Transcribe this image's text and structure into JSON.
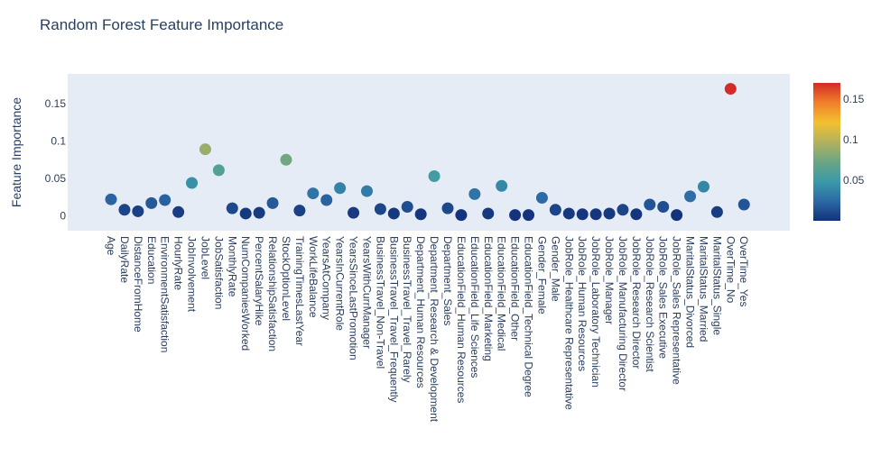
{
  "chart_data": {
    "type": "scatter",
    "title": "Random Forest Feature Importance",
    "xlabel": "",
    "ylabel": "Feature Importance",
    "ylim": [
      -0.02,
      0.19
    ],
    "y_ticks": [
      0,
      0.05,
      0.1,
      0.15
    ],
    "y_tick_labels": [
      "0",
      "0.05",
      "0.1",
      "0.15"
    ],
    "grid": false,
    "legend": "none",
    "colorbar": {
      "range": [
        0.0,
        0.17
      ],
      "ticks": [
        0.05,
        0.1,
        0.15
      ],
      "tick_labels": [
        "0.05",
        "0.1",
        "0.15"
      ],
      "colorscale": [
        "#13317a",
        "#2d6aa5",
        "#3a9aa8",
        "#6aa683",
        "#b4b15e",
        "#f2c12f",
        "#f07f2a",
        "#d32b25"
      ]
    },
    "categories": [
      "Age",
      "DailyRate",
      "DistanceFromHome",
      "Education",
      "EnvironmentSatisfaction",
      "HourlyRate",
      "JobInvolvement",
      "JobLevel",
      "JobSatisfaction",
      "MonthlyRate",
      "NumCompaniesWorked",
      "PercentSalaryHike",
      "RelationshipSatisfaction",
      "StockOptionLevel",
      "TrainingTimesLastYear",
      "WorkLifeBalance",
      "YearsAtCompany",
      "YearsInCurrentRole",
      "YearsSinceLastPromotion",
      "YearsWithCurrManager",
      "BusinessTravel_Non-Travel",
      "BusinessTravel_Travel_Frequently",
      "BusinessTravel_Travel_Rarely",
      "Department_Human Resources",
      "Department_Research & Development",
      "Department_Sales",
      "EducationField_Human Resources",
      "EducationField_Life Sciences",
      "EducationField_Marketing",
      "EducationField_Medical",
      "EducationField_Other",
      "EducationField_Technical Degree",
      "Gender_Female",
      "Gender_Male",
      "JobRole_Healthcare Representative",
      "JobRole_Human Resources",
      "JobRole_Laboratory Technician",
      "JobRole_Manager",
      "JobRole_Manufacturing Director",
      "JobRole_Research Director",
      "JobRole_Research Scientist",
      "JobRole_Sales Executive",
      "JobRole_Sales Representative",
      "MaritalStatus_Divorced",
      "MaritalStatus_Married",
      "MaritalStatus_Single",
      "OverTime_No",
      "OverTime_Yes"
    ],
    "values": [
      0.022,
      0.008,
      0.006,
      0.017,
      0.021,
      0.005,
      0.044,
      0.089,
      0.061,
      0.01,
      0.003,
      0.004,
      0.017,
      0.075,
      0.007,
      0.03,
      0.021,
      0.037,
      0.004,
      0.033,
      0.009,
      0.003,
      0.012,
      0.002,
      0.053,
      0.01,
      0.001,
      0.029,
      0.003,
      0.04,
      0.001,
      0.001,
      0.024,
      0.008,
      0.003,
      0.002,
      0.002,
      0.003,
      0.008,
      0.002,
      0.015,
      0.012,
      0.001,
      0.026,
      0.039,
      0.005,
      0.17,
      0.015
    ]
  }
}
